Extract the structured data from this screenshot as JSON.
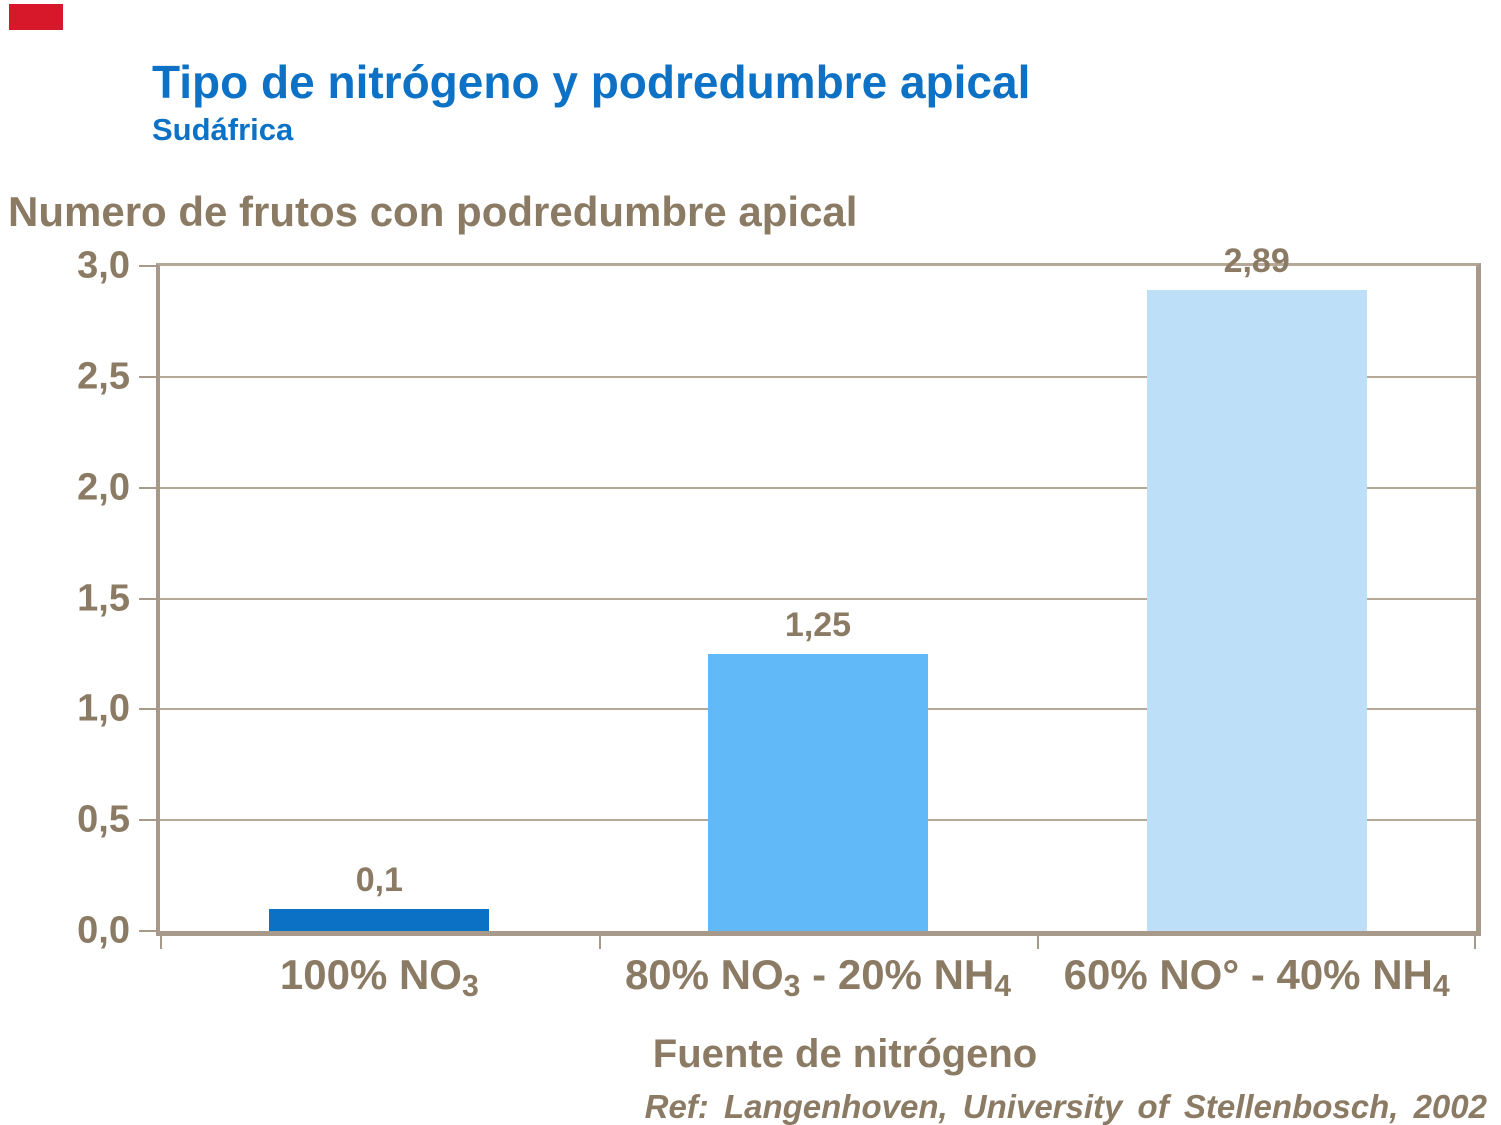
{
  "slide": {
    "title": "Tipo de nitrógeno y podredumbre apical",
    "subtitle": "Sudáfrica",
    "axis_header": "Numero de frutos con podredumbre apical",
    "xaxis_title": "Fuente de nitrógeno",
    "reference": "Ref: Langenhoven, University of Stellenbosch, 2002",
    "colors": {
      "title_blue": "#0d72c5",
      "text_brown": "#8b7b64",
      "axis_line": "#a89a8a",
      "gridline": "#b5a897",
      "accent_red": "#d7182a",
      "background": "#ffffff"
    }
  },
  "chart_data": {
    "type": "bar",
    "title": "Tipo de nitrógeno y podredumbre apical — Sudáfrica",
    "categories": [
      "100% NO3",
      "80% NO3 - 20% NH4",
      "60% NO° - 40% NH4"
    ],
    "category_parts": [
      [
        {
          "text": "100% NO"
        },
        {
          "text": "3",
          "sub": true
        }
      ],
      [
        {
          "text": "80% NO"
        },
        {
          "text": "3",
          "sub": true
        },
        {
          "text": " - 20% NH"
        },
        {
          "text": "4",
          "sub": true
        }
      ],
      [
        {
          "text": "60% NO° - 40% NH"
        },
        {
          "text": "4",
          "sub": true
        }
      ]
    ],
    "values": [
      0.1,
      1.25,
      2.89
    ],
    "value_labels": [
      "0,1",
      "1,25",
      "2,89"
    ],
    "bar_colors": [
      "#0a71c4",
      "#62b9f7",
      "#bddff8"
    ],
    "xlabel": "Fuente de nitrógeno",
    "ylabel": "Numero de frutos con podredumbre apical",
    "ylim": [
      0,
      3
    ],
    "ytick_step": 0.5,
    "ytick_labels": [
      "0,0",
      "0,5",
      "1,0",
      "1,5",
      "2,0",
      "2,5",
      "3,0"
    ],
    "grid": true,
    "legend": false
  }
}
